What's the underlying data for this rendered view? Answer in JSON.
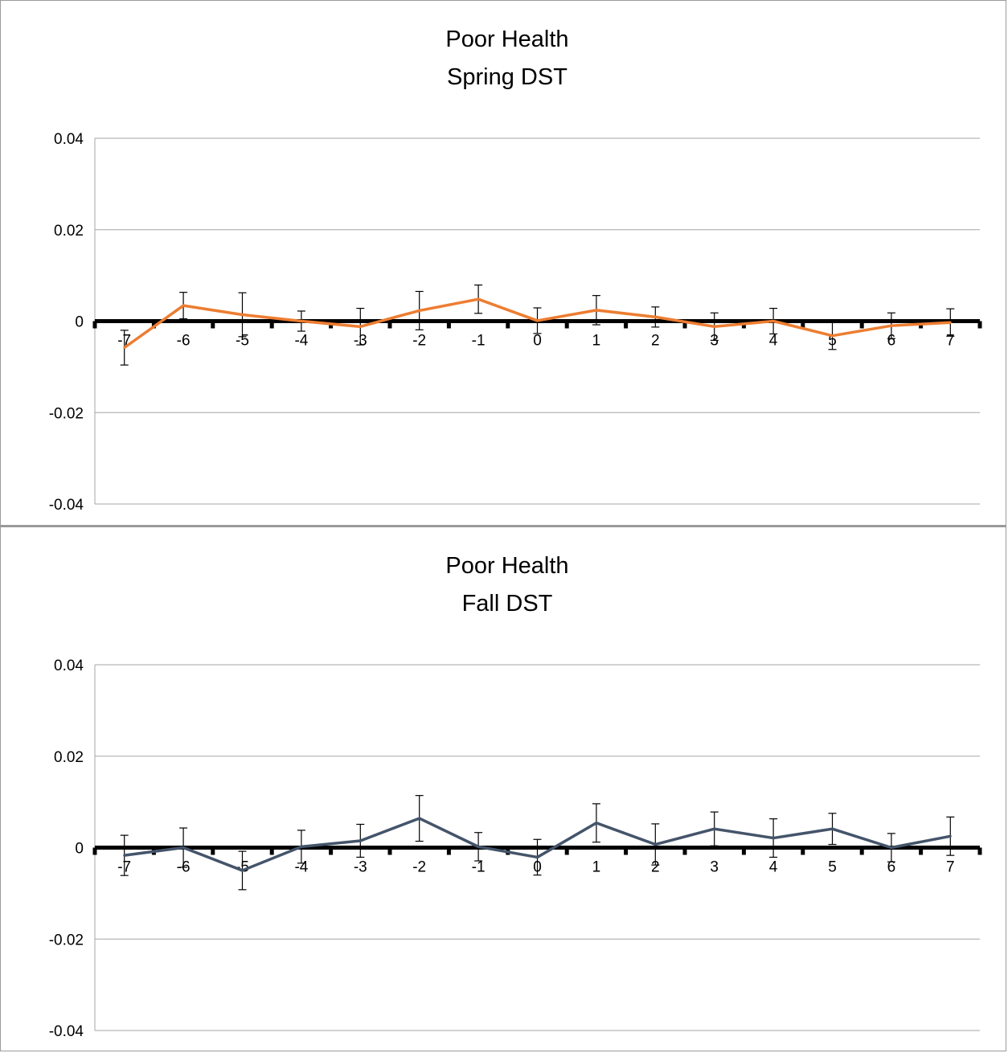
{
  "chart_data": [
    {
      "type": "line",
      "title_lines": [
        "Poor Health",
        "Spring DST"
      ],
      "xlabel": "",
      "ylabel": "",
      "ylim": [
        -0.04,
        0.04
      ],
      "yticks": [
        0.04,
        0.02,
        0,
        -0.02,
        -0.04
      ],
      "ytick_labels": [
        "0.04",
        "0.02",
        "0",
        "-0.02",
        "-0.04"
      ],
      "grid": true,
      "legend": "none",
      "line_color": "#ED7D31",
      "categories": [
        "-7",
        "-6",
        "-5",
        "-4",
        "-3",
        "-2",
        "-1",
        "0",
        "1",
        "2",
        "3",
        "4",
        "5",
        "6",
        "7"
      ],
      "x": [
        -7,
        -6,
        -5,
        -4,
        -3,
        -2,
        -1,
        0,
        1,
        2,
        3,
        4,
        5,
        6,
        7
      ],
      "series": [
        {
          "values": [
            -0.0058,
            0.0034,
            0.0014,
            0.0,
            -0.0012,
            0.0023,
            0.0048,
            0.0001,
            0.0024,
            0.0009,
            -0.0012,
            0.0,
            -0.0032,
            -0.001,
            -0.0003
          ],
          "error": [
            0.0038,
            0.0029,
            0.0048,
            0.0022,
            0.004,
            0.0042,
            0.0031,
            0.0028,
            0.0032,
            0.0022,
            0.003,
            0.0028,
            0.003,
            0.0028,
            0.003
          ]
        }
      ]
    },
    {
      "type": "line",
      "title_lines": [
        "Poor Health",
        "Fall DST"
      ],
      "xlabel": "",
      "ylabel": "",
      "ylim": [
        -0.04,
        0.04
      ],
      "yticks": [
        0.04,
        0.02,
        0,
        -0.02,
        -0.04
      ],
      "ytick_labels": [
        "0.04",
        "0.02",
        "0",
        "-0.02",
        "-0.04"
      ],
      "grid": true,
      "legend": "none",
      "line_color": "#44546A",
      "categories": [
        "-7",
        "-6",
        "-5",
        "-4",
        "-3",
        "-2",
        "-1",
        "0",
        "1",
        "2",
        "3",
        "4",
        "5",
        "6",
        "7"
      ],
      "x": [
        -7,
        -6,
        -5,
        -4,
        -3,
        -2,
        -1,
        0,
        1,
        2,
        3,
        4,
        5,
        6,
        7
      ],
      "series": [
        {
          "values": [
            -0.0017,
            0.0,
            -0.005,
            0.0002,
            0.0015,
            0.0064,
            0.0002,
            -0.0021,
            0.0054,
            0.0007,
            0.0041,
            0.0021,
            0.0041,
            0.0,
            0.0025
          ],
          "error": [
            0.0044,
            0.0043,
            0.0042,
            0.0036,
            0.0036,
            0.005,
            0.0031,
            0.0039,
            0.0042,
            0.0045,
            0.0037,
            0.0042,
            0.0034,
            0.0031,
            0.0042
          ]
        }
      ]
    }
  ]
}
